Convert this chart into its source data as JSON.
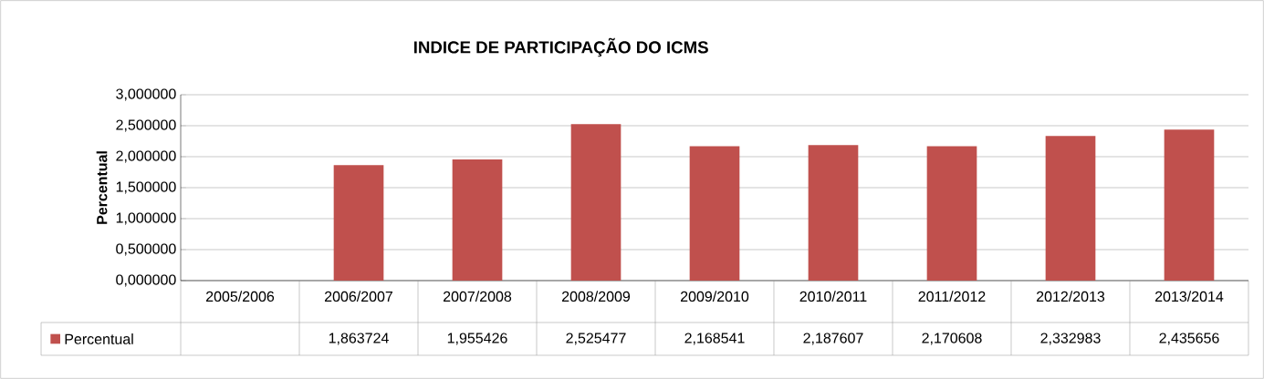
{
  "chart_data": {
    "type": "bar",
    "title": "INDICE DE PARTICIPAÇÃO DO ICMS",
    "ylabel": "Percentual",
    "categories": [
      "2005/2006",
      "2006/2007",
      "2007/2008",
      "2008/2009",
      "2009/2010",
      "2010/2011",
      "2011/2012",
      "2012/2013",
      "2013/2014"
    ],
    "series": [
      {
        "name": "Percentual",
        "color": "#c0504d",
        "values": [
          null,
          1.863724,
          1.955426,
          2.525477,
          2.168541,
          2.187607,
          2.170608,
          2.332983,
          2.435656
        ],
        "value_labels": [
          null,
          "1,863724",
          "1,955426",
          "2,525477",
          "2,168541",
          "2,187607",
          "2,170608",
          "2,332983",
          "2,435656"
        ]
      }
    ],
    "ylim": [
      0,
      3
    ],
    "yticks": [
      {
        "value": 0,
        "label": "0,000000"
      },
      {
        "value": 0.5,
        "label": "0,500000"
      },
      {
        "value": 1,
        "label": "1,000000"
      },
      {
        "value": 1.5,
        "label": "1,500000"
      },
      {
        "value": 2,
        "label": "2,000000"
      },
      {
        "value": 2.5,
        "label": "2,500000"
      },
      {
        "value": 3,
        "label": "3,000000"
      }
    ],
    "grid": "y",
    "legend": "bottom left"
  }
}
